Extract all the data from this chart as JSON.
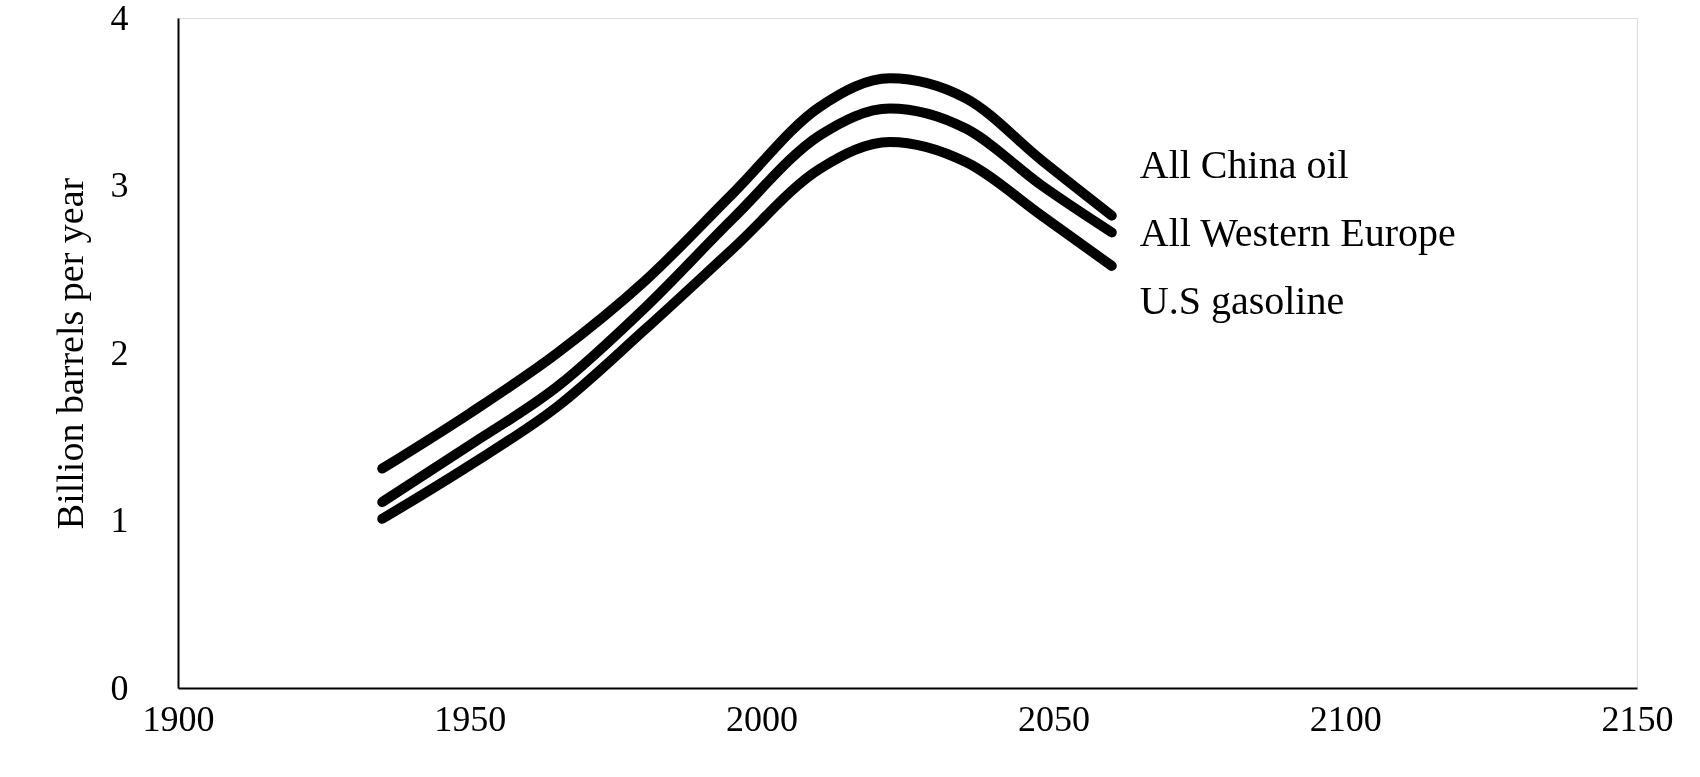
{
  "chart_data": {
    "type": "line",
    "ylabel": "Billion barrels per year",
    "xlim": [
      1900,
      2150
    ],
    "xticks": [
      1900,
      1950,
      2000,
      2050,
      2100,
      2150
    ],
    "ylim": [
      0,
      4
    ],
    "yticks": [
      0,
      1,
      2,
      3,
      4
    ],
    "grid": false,
    "legend": false,
    "marker": "none",
    "line_style": "solid",
    "x": [
      1935,
      1950,
      1965,
      1980,
      1995,
      2010,
      2022,
      2035,
      2048,
      2060
    ],
    "series": [
      {
        "name": "All China oil",
        "color": "#000000",
        "values": [
          1.31,
          1.64,
          2.0,
          2.43,
          2.95,
          3.47,
          3.64,
          3.52,
          3.15,
          2.82
        ]
      },
      {
        "name": "All Western Europe",
        "color": "#000000",
        "values": [
          1.11,
          1.45,
          1.8,
          2.27,
          2.8,
          3.3,
          3.46,
          3.34,
          3.0,
          2.72
        ]
      },
      {
        "name": "U.S gasoline",
        "color": "#000000",
        "values": [
          1.01,
          1.33,
          1.68,
          2.14,
          2.62,
          3.1,
          3.26,
          3.14,
          2.82,
          2.52
        ]
      }
    ]
  }
}
